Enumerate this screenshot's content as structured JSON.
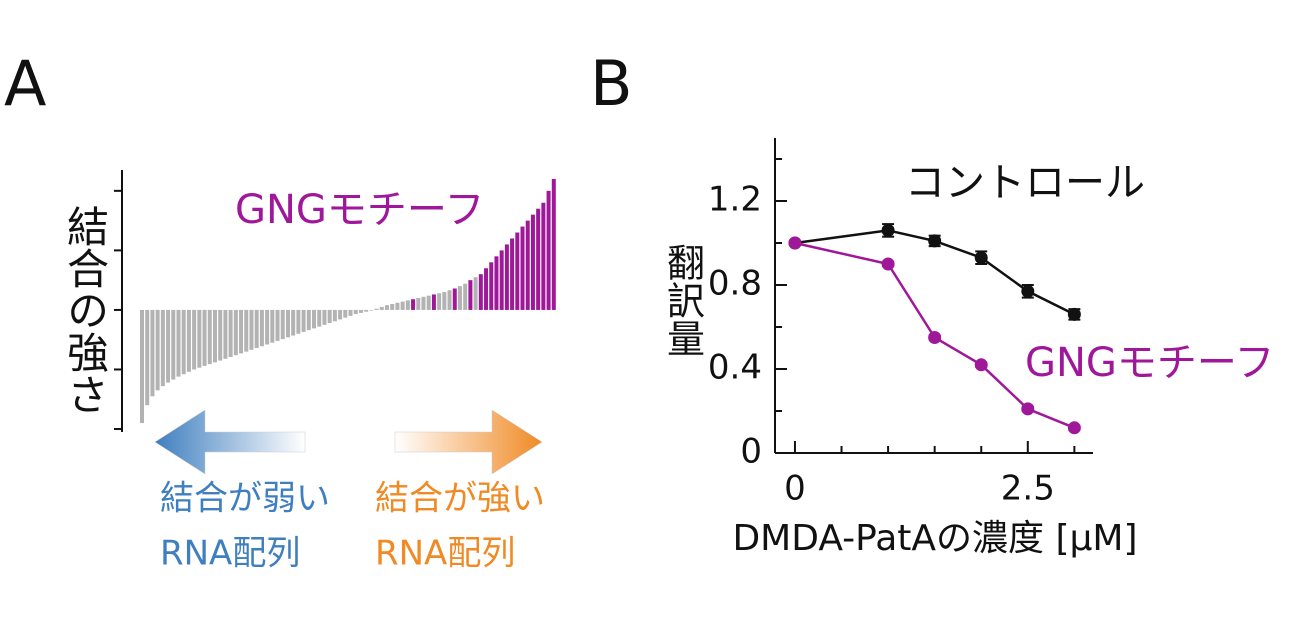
{
  "chart_data": [
    {
      "type": "bar",
      "panel": "A",
      "ylabel": "結合の強さ",
      "annotation": "GNGモチーフ",
      "annotation_color": "#a0189a",
      "ylim": [
        -2.05,
        2.35
      ],
      "yticks": [
        -2,
        -1,
        0,
        1,
        2
      ],
      "values": [
        -1.9,
        -1.6,
        -1.45,
        -1.35,
        -1.28,
        -1.22,
        -1.17,
        -1.12,
        -1.08,
        -1.04,
        -1.0,
        -0.97,
        -0.94,
        -0.91,
        -0.88,
        -0.85,
        -0.82,
        -0.79,
        -0.76,
        -0.73,
        -0.7,
        -0.67,
        -0.64,
        -0.61,
        -0.58,
        -0.55,
        -0.52,
        -0.49,
        -0.46,
        -0.43,
        -0.4,
        -0.37,
        -0.34,
        -0.31,
        -0.28,
        -0.25,
        -0.22,
        -0.19,
        -0.16,
        -0.13,
        -0.1,
        -0.07,
        -0.05,
        -0.03,
        -0.01,
        0.02,
        0.05,
        0.08,
        0.1,
        0.12,
        0.14,
        0.16,
        0.18,
        0.2,
        0.22,
        0.24,
        0.26,
        0.28,
        0.3,
        0.33,
        0.36,
        0.4,
        0.44,
        0.5,
        0.55,
        0.6,
        0.7,
        0.8,
        0.9,
        1.0,
        1.1,
        1.2,
        1.3,
        1.4,
        1.5,
        1.6,
        1.7,
        1.8,
        2.0,
        2.2
      ],
      "bar_colors": [
        "#b3b3b3",
        "#b3b3b3",
        "#b3b3b3",
        "#b3b3b3",
        "#b3b3b3",
        "#b3b3b3",
        "#b3b3b3",
        "#b3b3b3",
        "#b3b3b3",
        "#b3b3b3",
        "#b3b3b3",
        "#b3b3b3",
        "#b3b3b3",
        "#b3b3b3",
        "#b3b3b3",
        "#b3b3b3",
        "#b3b3b3",
        "#b3b3b3",
        "#b3b3b3",
        "#b3b3b3",
        "#b3b3b3",
        "#b3b3b3",
        "#b3b3b3",
        "#b3b3b3",
        "#b3b3b3",
        "#b3b3b3",
        "#b3b3b3",
        "#b3b3b3",
        "#b3b3b3",
        "#b3b3b3",
        "#b3b3b3",
        "#b3b3b3",
        "#b3b3b3",
        "#b3b3b3",
        "#b3b3b3",
        "#b3b3b3",
        "#b3b3b3",
        "#b3b3b3",
        "#b3b3b3",
        "#b3b3b3",
        "#b3b3b3",
        "#b3b3b3",
        "#b3b3b3",
        "#b3b3b3",
        "#b3b3b3",
        "#b3b3b3",
        "#b3b3b3",
        "#b3b3b3",
        "#b3b3b3",
        "#b3b3b3",
        "#b3b3b3",
        "#b3b3b3",
        "#a0189a",
        "#b3b3b3",
        "#b3b3b3",
        "#b3b3b3",
        "#a0189a",
        "#b3b3b3",
        "#b3b3b3",
        "#b3b3b3",
        "#a0189a",
        "#b3b3b3",
        "#b3b3b3",
        "#a0189a",
        "#b3b3b3",
        "#a0189a",
        "#a0189a",
        "#a0189a",
        "#a0189a",
        "#a0189a",
        "#a0189a",
        "#a0189a",
        "#a0189a",
        "#a0189a",
        "#a0189a",
        "#a0189a",
        "#a0189a",
        "#a0189a",
        "#a0189a",
        "#a0189a"
      ],
      "arrow_labels": [
        {
          "lines": [
            "結合が弱い",
            "RNA配列"
          ],
          "color": "#3f7fbf"
        },
        {
          "lines": [
            "結合が強い",
            "RNA配列"
          ],
          "color": "#f08a24"
        }
      ]
    },
    {
      "type": "line",
      "panel": "B",
      "xlabel": "DMDA-PatAの濃度 [μM]",
      "ylabel": "翻訳量",
      "x": [
        0,
        1,
        1.5,
        2,
        2.5,
        3
      ],
      "xlim": [
        -0.05,
        3.2
      ],
      "xticks": [
        0,
        2.5
      ],
      "xminorticks": [
        0.5,
        1,
        1.5,
        2,
        3
      ],
      "ylim": [
        0,
        1.5
      ],
      "yticks": [
        0,
        0.4,
        0.8,
        1.2
      ],
      "yminorticks": [
        0.2,
        0.6,
        1.0,
        1.4
      ],
      "series": [
        {
          "name": "コントロール",
          "color": "#111111",
          "values": [
            1.0,
            1.06,
            1.01,
            0.93,
            0.77,
            0.66
          ],
          "errors": [
            0,
            0.03,
            0.025,
            0.03,
            0.03,
            0.025
          ]
        },
        {
          "name": "GNGモチーフ",
          "color": "#a0189a",
          "values": [
            1.0,
            0.9,
            0.55,
            0.42,
            0.21,
            0.12
          ],
          "errors": [
            0,
            0.01,
            0.01,
            0.01,
            0.01,
            0.01
          ]
        }
      ]
    }
  ]
}
